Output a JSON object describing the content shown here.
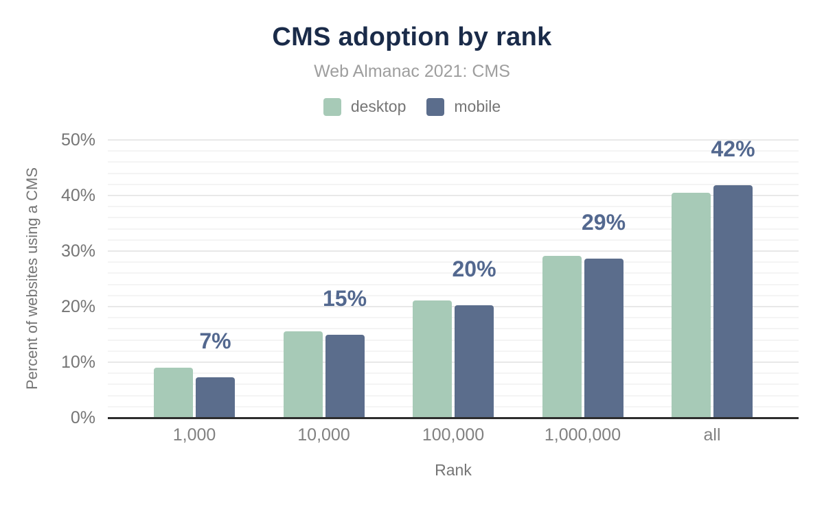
{
  "header": {
    "title": "CMS adoption by rank",
    "subtitle": "Web Almanac 2021: CMS"
  },
  "chart_data": {
    "type": "bar",
    "title": "CMS adoption by rank",
    "subtitle": "Web Almanac 2021: CMS",
    "categories": [
      "1,000",
      "10,000",
      "100,000",
      "1,000,000",
      "all"
    ],
    "series": [
      {
        "name": "desktop",
        "color": "#a7cab7",
        "values": [
          9.0,
          15.6,
          21.1,
          29.1,
          40.5
        ]
      },
      {
        "name": "mobile",
        "color": "#5b6d8c",
        "values": [
          7.3,
          14.9,
          20.3,
          28.6,
          41.8
        ]
      }
    ],
    "data_labels": {
      "text": [
        "7%",
        "15%",
        "20%",
        "29%",
        "42%"
      ],
      "anchor_series": "mobile",
      "color": "#53688f"
    },
    "xlabel": "Rank",
    "ylabel": "Percent of websites using a CMS",
    "ylim": [
      0,
      50
    ],
    "ytick_step": 10,
    "ytick_labels": [
      "0%",
      "10%",
      "20%",
      "30%",
      "40%",
      "50%"
    ],
    "grid": {
      "major_step_pct": 10,
      "minor_step_pct": 2,
      "major_color": "#e8e8e8",
      "minor_color": "#f4f4f4"
    },
    "legend_position": "top",
    "axis_line_color": "#2d2d2d",
    "title_color": "#1a2b49",
    "subtitle_color": "#9e9e9e"
  }
}
